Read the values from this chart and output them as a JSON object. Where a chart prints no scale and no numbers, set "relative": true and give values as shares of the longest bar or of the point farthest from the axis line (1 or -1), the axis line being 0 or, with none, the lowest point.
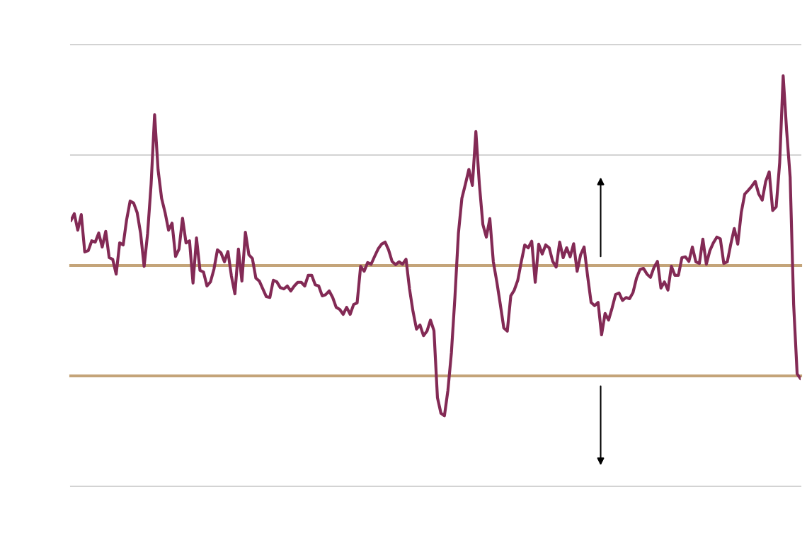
{
  "chart_data": {
    "type": "line",
    "relative": true,
    "categories": [
      null,
      null,
      null,
      null,
      null,
      null,
      null,
      null,
      null,
      null,
      null,
      null,
      null,
      null,
      null,
      null,
      null,
      null,
      null,
      null,
      null,
      null,
      null,
      null,
      null,
      null,
      null,
      null,
      null,
      null,
      null,
      null,
      null,
      null,
      null,
      null,
      null,
      null,
      null,
      null,
      null,
      null,
      null,
      null,
      null,
      null,
      null,
      null,
      null,
      null,
      null,
      null,
      null,
      null,
      null,
      null,
      null,
      null,
      null,
      null,
      null,
      null,
      null,
      null,
      null,
      null,
      null,
      null,
      null,
      null,
      null,
      null,
      null,
      null,
      null,
      null,
      null,
      null,
      null,
      null,
      null,
      null,
      null,
      null,
      null,
      null,
      null,
      null,
      null,
      null,
      null,
      null,
      null,
      null,
      null,
      null,
      null,
      null,
      null,
      null,
      null,
      null,
      null,
      null,
      null,
      null,
      null,
      null,
      null,
      null,
      null,
      null,
      null,
      null,
      null,
      null,
      null,
      null,
      null,
      null,
      null,
      null,
      null,
      null,
      null,
      null,
      null,
      null,
      null,
      null,
      null,
      null,
      null,
      null,
      null,
      null,
      null,
      null,
      null,
      null,
      null,
      null,
      null,
      null,
      null,
      null,
      null,
      null,
      null,
      null,
      null,
      null,
      null,
      null,
      null,
      null,
      null,
      null,
      null,
      null,
      null,
      null,
      null,
      null,
      null,
      null,
      null,
      null,
      null,
      null,
      null,
      null,
      null,
      null,
      null,
      null,
      null,
      null,
      null,
      null,
      null,
      null,
      null,
      null,
      null,
      null,
      null,
      null,
      null,
      null,
      null,
      null,
      null,
      null,
      null,
      null,
      null,
      null,
      null,
      null,
      null,
      null,
      null,
      null,
      null,
      null,
      null,
      null,
      null,
      null
    ],
    "series": [
      {
        "color": "#832a55",
        "values": [
          0.647,
          0.664,
          0.624,
          0.662,
          0.571,
          0.574,
          0.598,
          0.595,
          0.617,
          0.583,
          0.621,
          0.557,
          0.553,
          0.517,
          0.593,
          0.588,
          0.65,
          0.695,
          0.69,
          0.667,
          0.616,
          0.536,
          0.616,
          0.736,
          0.905,
          0.771,
          0.702,
          0.667,
          0.624,
          0.641,
          0.56,
          0.578,
          0.653,
          0.593,
          0.598,
          0.495,
          0.605,
          0.526,
          0.522,
          0.488,
          0.498,
          0.529,
          0.576,
          0.569,
          0.547,
          0.572,
          0.512,
          0.469,
          0.578,
          0.5,
          0.619,
          0.564,
          0.555,
          0.507,
          0.5,
          0.481,
          0.462,
          0.46,
          0.502,
          0.498,
          0.484,
          0.481,
          0.488,
          0.476,
          0.488,
          0.497,
          0.497,
          0.488,
          0.514,
          0.514,
          0.491,
          0.488,
          0.464,
          0.467,
          0.476,
          0.46,
          0.436,
          0.431,
          0.419,
          0.436,
          0.419,
          0.443,
          0.447,
          0.536,
          0.524,
          0.545,
          0.541,
          0.56,
          0.578,
          0.59,
          0.595,
          0.576,
          0.548,
          0.54,
          0.547,
          0.541,
          0.553,
          0.481,
          0.426,
          0.383,
          0.393,
          0.367,
          0.378,
          0.405,
          0.379,
          0.216,
          0.178,
          0.172,
          0.234,
          0.326,
          0.46,
          0.616,
          0.702,
          0.736,
          0.772,
          0.733,
          0.864,
          0.736,
          0.638,
          0.607,
          0.652,
          0.547,
          0.498,
          0.443,
          0.386,
          0.378,
          0.464,
          0.478,
          0.502,
          0.547,
          0.588,
          0.581,
          0.597,
          0.497,
          0.59,
          0.566,
          0.588,
          0.581,
          0.548,
          0.534,
          0.595,
          0.557,
          0.581,
          0.559,
          0.591,
          0.524,
          0.564,
          0.583,
          0.512,
          0.448,
          0.44,
          0.448,
          0.369,
          0.421,
          0.405,
          0.434,
          0.467,
          0.471,
          0.453,
          0.46,
          0.457,
          0.472,
          0.507,
          0.528,
          0.531,
          0.517,
          0.509,
          0.533,
          0.548,
          0.483,
          0.498,
          0.478,
          0.536,
          0.514,
          0.514,
          0.557,
          0.559,
          0.548,
          0.583,
          0.547,
          0.543,
          0.602,
          0.541,
          0.574,
          0.593,
          0.607,
          0.603,
          0.543,
          0.547,
          0.59,
          0.628,
          0.59,
          0.667,
          0.712,
          0.721,
          0.731,
          0.743,
          0.712,
          0.697,
          0.743,
          0.766,
          0.672,
          0.681,
          0.788,
          1.0,
          0.866,
          0.753,
          0.443,
          0.274,
          0.262
        ]
      }
    ],
    "ref_lines": [
      {
        "axis": "y",
        "value": 1.076,
        "color": "#d3d3d3"
      },
      {
        "axis": "y",
        "value": 0.807,
        "color": "#d3d3d3"
      },
      {
        "axis": "y",
        "value": 0.538,
        "color": "#c4a479"
      },
      {
        "axis": "y",
        "value": 0.269,
        "color": "#c4a479"
      }
    ]
  }
}
